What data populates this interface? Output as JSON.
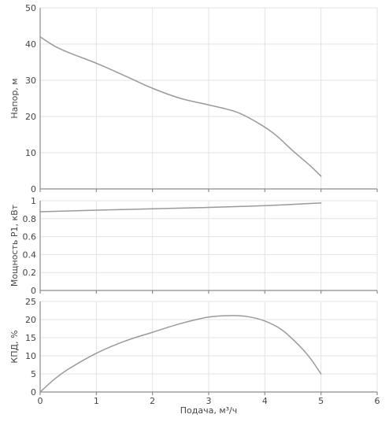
{
  "chart_data": [
    {
      "type": "line",
      "ylabel": "Напор, м",
      "xlabel": "",
      "xlim": [
        0,
        6
      ],
      "ylim": [
        0,
        50
      ],
      "x_ticks": [
        "0",
        "1",
        "2",
        "3",
        "4",
        "5",
        "6"
      ],
      "y_ticks": [
        "0",
        "10",
        "20",
        "30",
        "40",
        "50"
      ],
      "grid": true,
      "series": [
        {
          "x": [
            0,
            0.25,
            0.5,
            1.0,
            1.5,
            2.0,
            2.5,
            3.0,
            3.5,
            3.9,
            4.2,
            4.5,
            4.8,
            5.0
          ],
          "y": [
            42,
            39.5,
            37.7,
            34.7,
            31.3,
            27.8,
            25.0,
            23.2,
            21.2,
            18.0,
            14.8,
            10.5,
            6.5,
            3.5
          ]
        }
      ],
      "color": "#9a9a9a"
    },
    {
      "type": "line",
      "ylabel": "Мощность P1, кВт",
      "xlabel": "",
      "xlim": [
        0,
        6
      ],
      "ylim": [
        0,
        1
      ],
      "x_ticks": [
        "0",
        "1",
        "2",
        "3",
        "4",
        "5",
        "6"
      ],
      "y_ticks": [
        "0",
        "0.2",
        "0.4",
        "0.6",
        "0.8",
        "1"
      ],
      "grid": true,
      "series": [
        {
          "x": [
            0,
            1,
            2,
            3,
            4,
            5
          ],
          "y": [
            0.877,
            0.895,
            0.91,
            0.925,
            0.945,
            0.975
          ]
        }
      ],
      "color": "#9a9a9a"
    },
    {
      "type": "line",
      "ylabel": "КПД, %",
      "xlabel": "Подача, м³/ч",
      "xlim": [
        0,
        6
      ],
      "ylim": [
        0,
        25
      ],
      "x_ticks": [
        "0",
        "1",
        "2",
        "3",
        "4",
        "5",
        "6"
      ],
      "y_ticks": [
        "0",
        "5",
        "10",
        "15",
        "20",
        "25"
      ],
      "grid": true,
      "series": [
        {
          "x": [
            0,
            0.25,
            0.5,
            1.0,
            1.5,
            2.0,
            2.5,
            3.0,
            3.4,
            3.7,
            4.0,
            4.3,
            4.6,
            4.8,
            5.0
          ],
          "y": [
            0,
            3.5,
            6.3,
            10.7,
            14.0,
            16.5,
            18.9,
            20.7,
            21.1,
            20.8,
            19.6,
            17.2,
            13.0,
            9.5,
            5.0
          ]
        }
      ],
      "color": "#9a9a9a"
    }
  ]
}
